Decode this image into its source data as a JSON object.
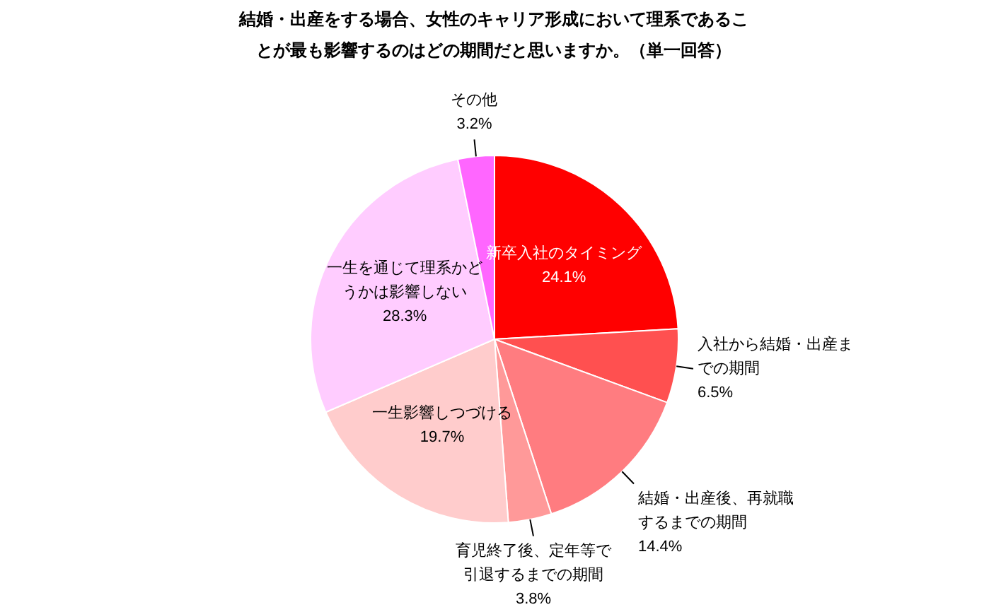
{
  "chart_data": {
    "type": "pie",
    "title": "結婚・出産をする場合、女性のキャリア形成において理系であることが最も影響するのはどの期間だと思いますか。（単一回答）",
    "categories": [
      "新卒入社のタイミング",
      "入社から結婚・出産までの期間",
      "結婚・出産後、再就職するまでの期間",
      "育児終了後、定年等で引退するまでの期間",
      "一生影響しつづける",
      "一生を通じて理系かどうかは影響しない",
      "その他"
    ],
    "values": [
      24.1,
      6.5,
      14.4,
      3.8,
      19.7,
      28.3,
      3.2
    ],
    "value_labels": [
      "24.1%",
      "6.5%",
      "14.4%",
      "3.8%",
      "19.7%",
      "28.3%",
      "3.2%"
    ],
    "colors": [
      "#ff0000",
      "#ff5050",
      "#ff7c80",
      "#ff9999",
      "#ffcccc",
      "#ffccff",
      "#ff66ff"
    ],
    "legend": false
  }
}
